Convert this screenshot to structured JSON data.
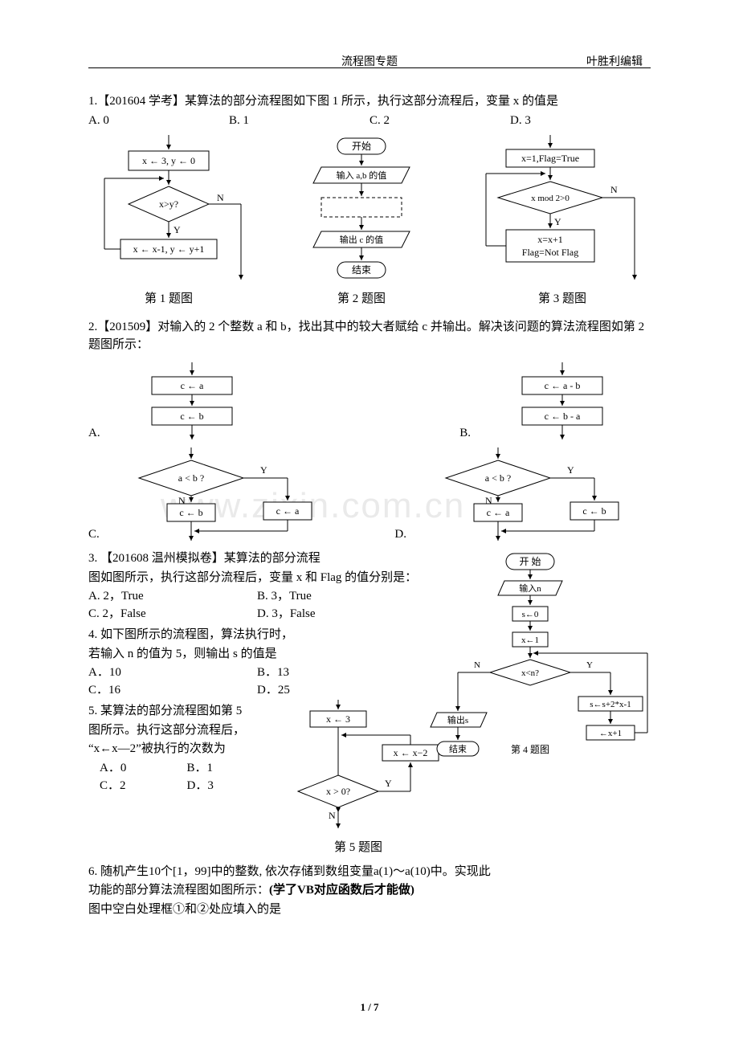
{
  "header": {
    "center": "流程图专题",
    "right": "叶胜利编辑"
  },
  "footer": "1 / 7",
  "watermark": "www.zixin.com.cn",
  "q1": {
    "stem": "1.【201604 学考】某算法的部分流程图如下图 1 所示，执行这部分流程后，变量 x 的值是",
    "opts": [
      "A. 0",
      "B. 1",
      "C. 2",
      "D. 3"
    ],
    "fig1": {
      "b1": "x ← 3, y ← 0",
      "d1": "x>y?",
      "dY": "Y",
      "dN": "N",
      "b2": "x ← x-1, y ← y+1",
      "cap": "第 1 题图"
    },
    "fig2": {
      "start": "开始",
      "in": "输入 a,b 的值",
      "out": "输出  c  的值",
      "end": "结束",
      "cap": "第 2 题图"
    },
    "fig3": {
      "b1": "x=1,Flag=True",
      "d1": "x mod 2>0",
      "dY": "Y",
      "dN": "N",
      "b2": "x=x+1\nFlag=Not Flag",
      "cap": "第 3 题图"
    }
  },
  "q2": {
    "stem": "2.【201509】对输入的 2 个整数 a 和 b，找出其中的较大者赋给 c 并输出。解决该问题的算法流程图如第 2 题图所示：",
    "A": {
      "lab": "A.",
      "r1": "c ← a",
      "r2": "c ← b"
    },
    "B": {
      "lab": "B.",
      "r1": "c ← a - b",
      "r2": "c ← b - a"
    },
    "C": {
      "lab": "C.",
      "d": "a < b ?",
      "y": "Y",
      "n": "N",
      "rn": "c ← b",
      "ry": "c ← a"
    },
    "D": {
      "lab": "D.",
      "d": "a < b ?",
      "y": "Y",
      "n": "N",
      "rn": "c ← a",
      "ry": "c ← b"
    }
  },
  "q3": {
    "stem_l1": "3. 【201608 温州模拟卷】某算法的部分流程",
    "stem_l2": "图如图所示，执行这部分流程后，变量 x 和 Flag 的值分别是：",
    "opts_r1": [
      "A. 2，True",
      "B. 3，True"
    ],
    "opts_r2": [
      "C. 2，False",
      "D. 3，False"
    ]
  },
  "q4": {
    "l1": "4. 如下图所示的流程图，算法执行时，",
    "l2": "若输入 n 的值为 5，则输出 s 的值是",
    "opts_r1": [
      "A．10",
      "B．13"
    ],
    "opts_r2": [
      "C．16",
      "D．25"
    ],
    "fig": {
      "start": "开 始",
      "in": "输入n",
      "s": "s←0",
      "x": "x←1",
      "cond": "x<n?",
      "y": "Y",
      "n": "N",
      "upd": "s←s+2*x-1",
      "inc": "←x+1",
      "out": "输出s",
      "end": "结束",
      "cap": "第 4 题图"
    }
  },
  "q5": {
    "l1": "5. 某算法的部分流程图如第 5",
    "l2": "图所示。执行这部分流程后，",
    "l3": "“x←x—2”被执行的次数为",
    "opts_r1": [
      "A．0",
      "B．1"
    ],
    "opts_r2": [
      "C．2",
      "D．3"
    ],
    "fig": {
      "b1": "x ← 3",
      "b2": "x ← x−2",
      "d": "x > 0?",
      "y": "Y",
      "n": "N",
      "cap": "第 5 题图"
    }
  },
  "q6": {
    "l1": "6. 随机产生10个[1，99]中的整数, 依次存储到数组变量a(1)～a(10)中。实现此",
    "l2": "功能的部分算法流程图如图所示：(学了VB对应函数后才能做)",
    "l3": "图中空白处理框①和②处应填入的是"
  },
  "colors": {
    "stroke": "#000000",
    "fill": "#ffffff"
  }
}
